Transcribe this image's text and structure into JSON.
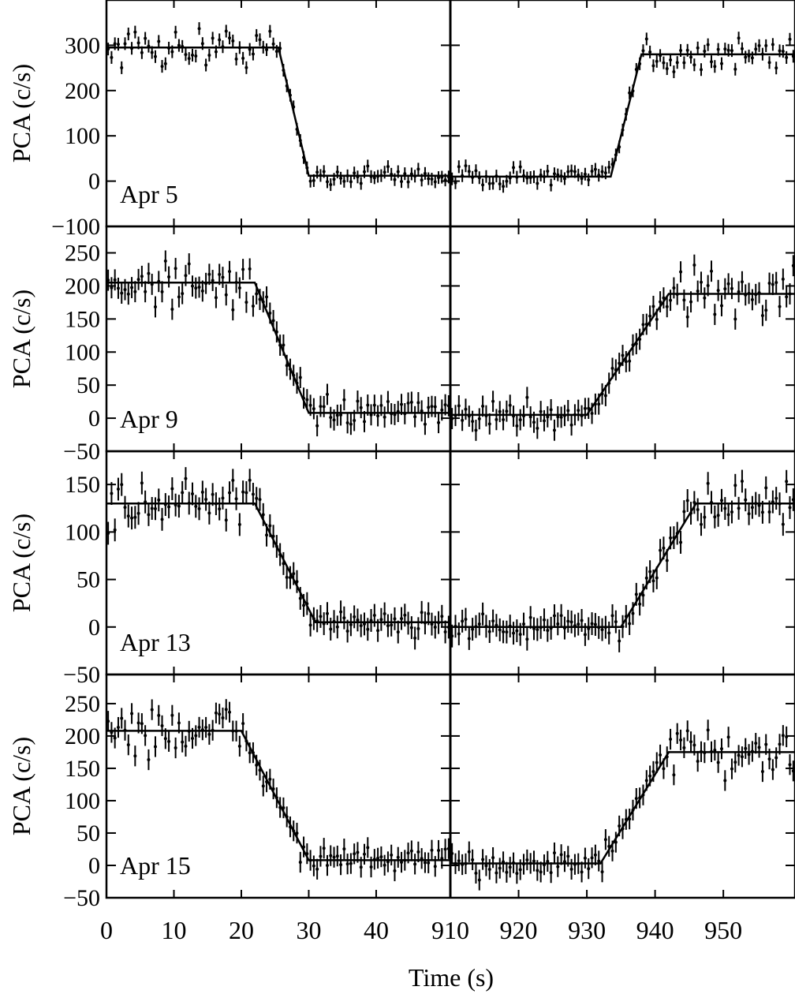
{
  "figure": {
    "xlabel": "Time (s)"
  },
  "chart_data": [
    {
      "type": "scatter",
      "panel_label": "Apr 5",
      "ylabel": "PCA (c/s)",
      "ylim": [
        -100,
        400
      ],
      "yticks": [
        -100,
        0,
        100,
        200,
        300
      ],
      "ytick_labels": [
        "−100",
        "0",
        "100",
        "200",
        "300"
      ],
      "x_left": [
        0,
        50
      ],
      "x_right": [
        910,
        960
      ],
      "ingress": {
        "high": 295,
        "low": 12,
        "t_start": 25.5,
        "t_end": 30.0
      },
      "egress": {
        "low": 10,
        "high": 280,
        "t_start": 933.5,
        "t_end": 938.0
      },
      "noise": 22,
      "err": 14
    },
    {
      "type": "scatter",
      "panel_label": "Apr 9",
      "ylabel": "PCA (c/s)",
      "ylim": [
        -50,
        290
      ],
      "yticks": [
        -50,
        0,
        50,
        100,
        150,
        200,
        250
      ],
      "ytick_labels": [
        "−50",
        "0",
        "50",
        "100",
        "150",
        "200",
        "250"
      ],
      "x_left": [
        0,
        50
      ],
      "x_right": [
        910,
        960
      ],
      "ingress": {
        "high": 205,
        "low": 8,
        "t_start": 22.0,
        "t_end": 30.0
      },
      "egress": {
        "low": 5,
        "high": 188,
        "t_start": 930.0,
        "t_end": 942.0
      },
      "noise": 20,
      "err": 16
    },
    {
      "type": "scatter",
      "panel_label": "Apr 13",
      "ylabel": "PCA (c/s)",
      "ylim": [
        -50,
        185
      ],
      "yticks": [
        -50,
        0,
        50,
        100,
        150
      ],
      "ytick_labels": [
        "−50",
        "0",
        "50",
        "100",
        "150"
      ],
      "x_left": [
        0,
        50
      ],
      "x_right": [
        910,
        960
      ],
      "ingress": {
        "high": 130,
        "low": 5,
        "t_start": 22.0,
        "t_end": 31.0
      },
      "egress": {
        "low": 0,
        "high": 130,
        "t_start": 935.0,
        "t_end": 946.0
      },
      "noise": 14,
      "err": 12
    },
    {
      "type": "scatter",
      "panel_label": "Apr 15",
      "ylabel": "PCA (c/s)",
      "ylim": [
        -50,
        295
      ],
      "yticks": [
        -50,
        0,
        50,
        100,
        150,
        200,
        250
      ],
      "ytick_labels": [
        "−50",
        "0",
        "50",
        "100",
        "150",
        "200",
        "250"
      ],
      "x_left": [
        0,
        50
      ],
      "x_right": [
        910,
        960
      ],
      "ingress": {
        "high": 208,
        "low": 8,
        "t_start": 20.0,
        "t_end": 30.0
      },
      "egress": {
        "low": 3,
        "high": 175,
        "t_start": 932.0,
        "t_end": 942.0
      },
      "noise": 20,
      "err": 16
    }
  ],
  "x_ticks_left": [
    0,
    10,
    20,
    30,
    40
  ],
  "x_ticks_right": [
    910,
    920,
    930,
    940,
    950
  ],
  "x_tick_labels_left": [
    "0",
    "10",
    "20",
    "30",
    "40"
  ],
  "x_tick_labels_right": [
    "910",
    "920",
    "930",
    "940",
    "950"
  ]
}
